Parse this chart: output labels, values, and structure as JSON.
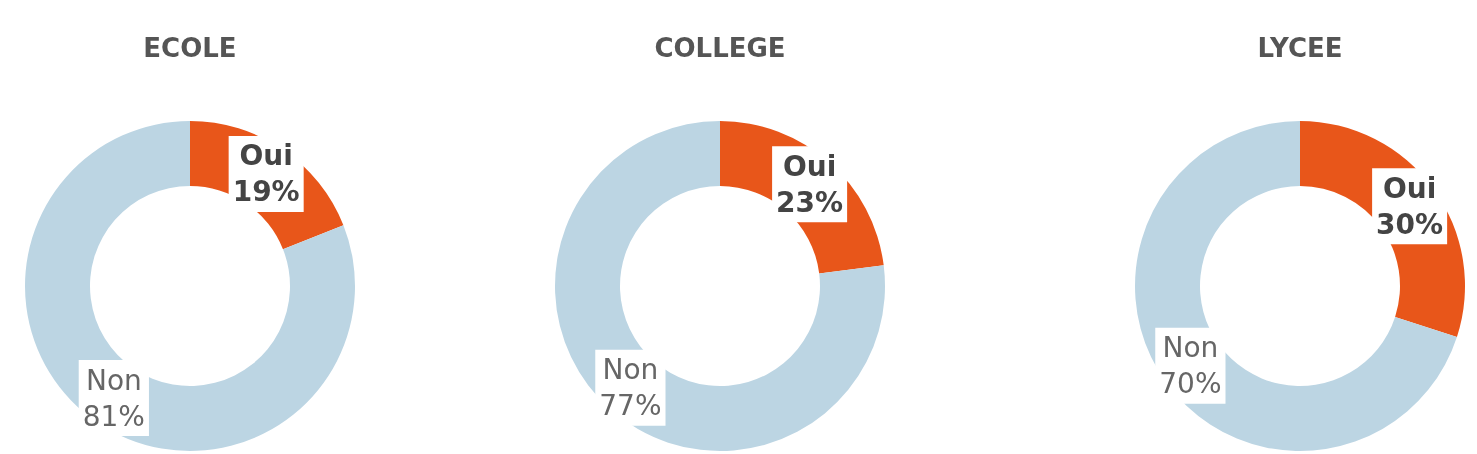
{
  "chart_data": [
    {
      "type": "donut",
      "title": "ECOLE",
      "categories": [
        "Oui",
        "Non"
      ],
      "values": [
        19,
        81
      ],
      "colors": [
        "#e8561a",
        "#bcd5e3"
      ],
      "value_labels": [
        "19%",
        "81%"
      ]
    },
    {
      "type": "donut",
      "title": "COLLEGE",
      "categories": [
        "Oui",
        "Non"
      ],
      "values": [
        23,
        77
      ],
      "colors": [
        "#e8561a",
        "#bcd5e3"
      ],
      "value_labels": [
        "23%",
        "77%"
      ]
    },
    {
      "type": "donut",
      "title": "LYCEE",
      "categories": [
        "Oui",
        "Non"
      ],
      "values": [
        30,
        70
      ],
      "colors": [
        "#e8561a",
        "#bcd5e3"
      ],
      "value_labels": [
        "30%",
        "70%"
      ]
    }
  ]
}
